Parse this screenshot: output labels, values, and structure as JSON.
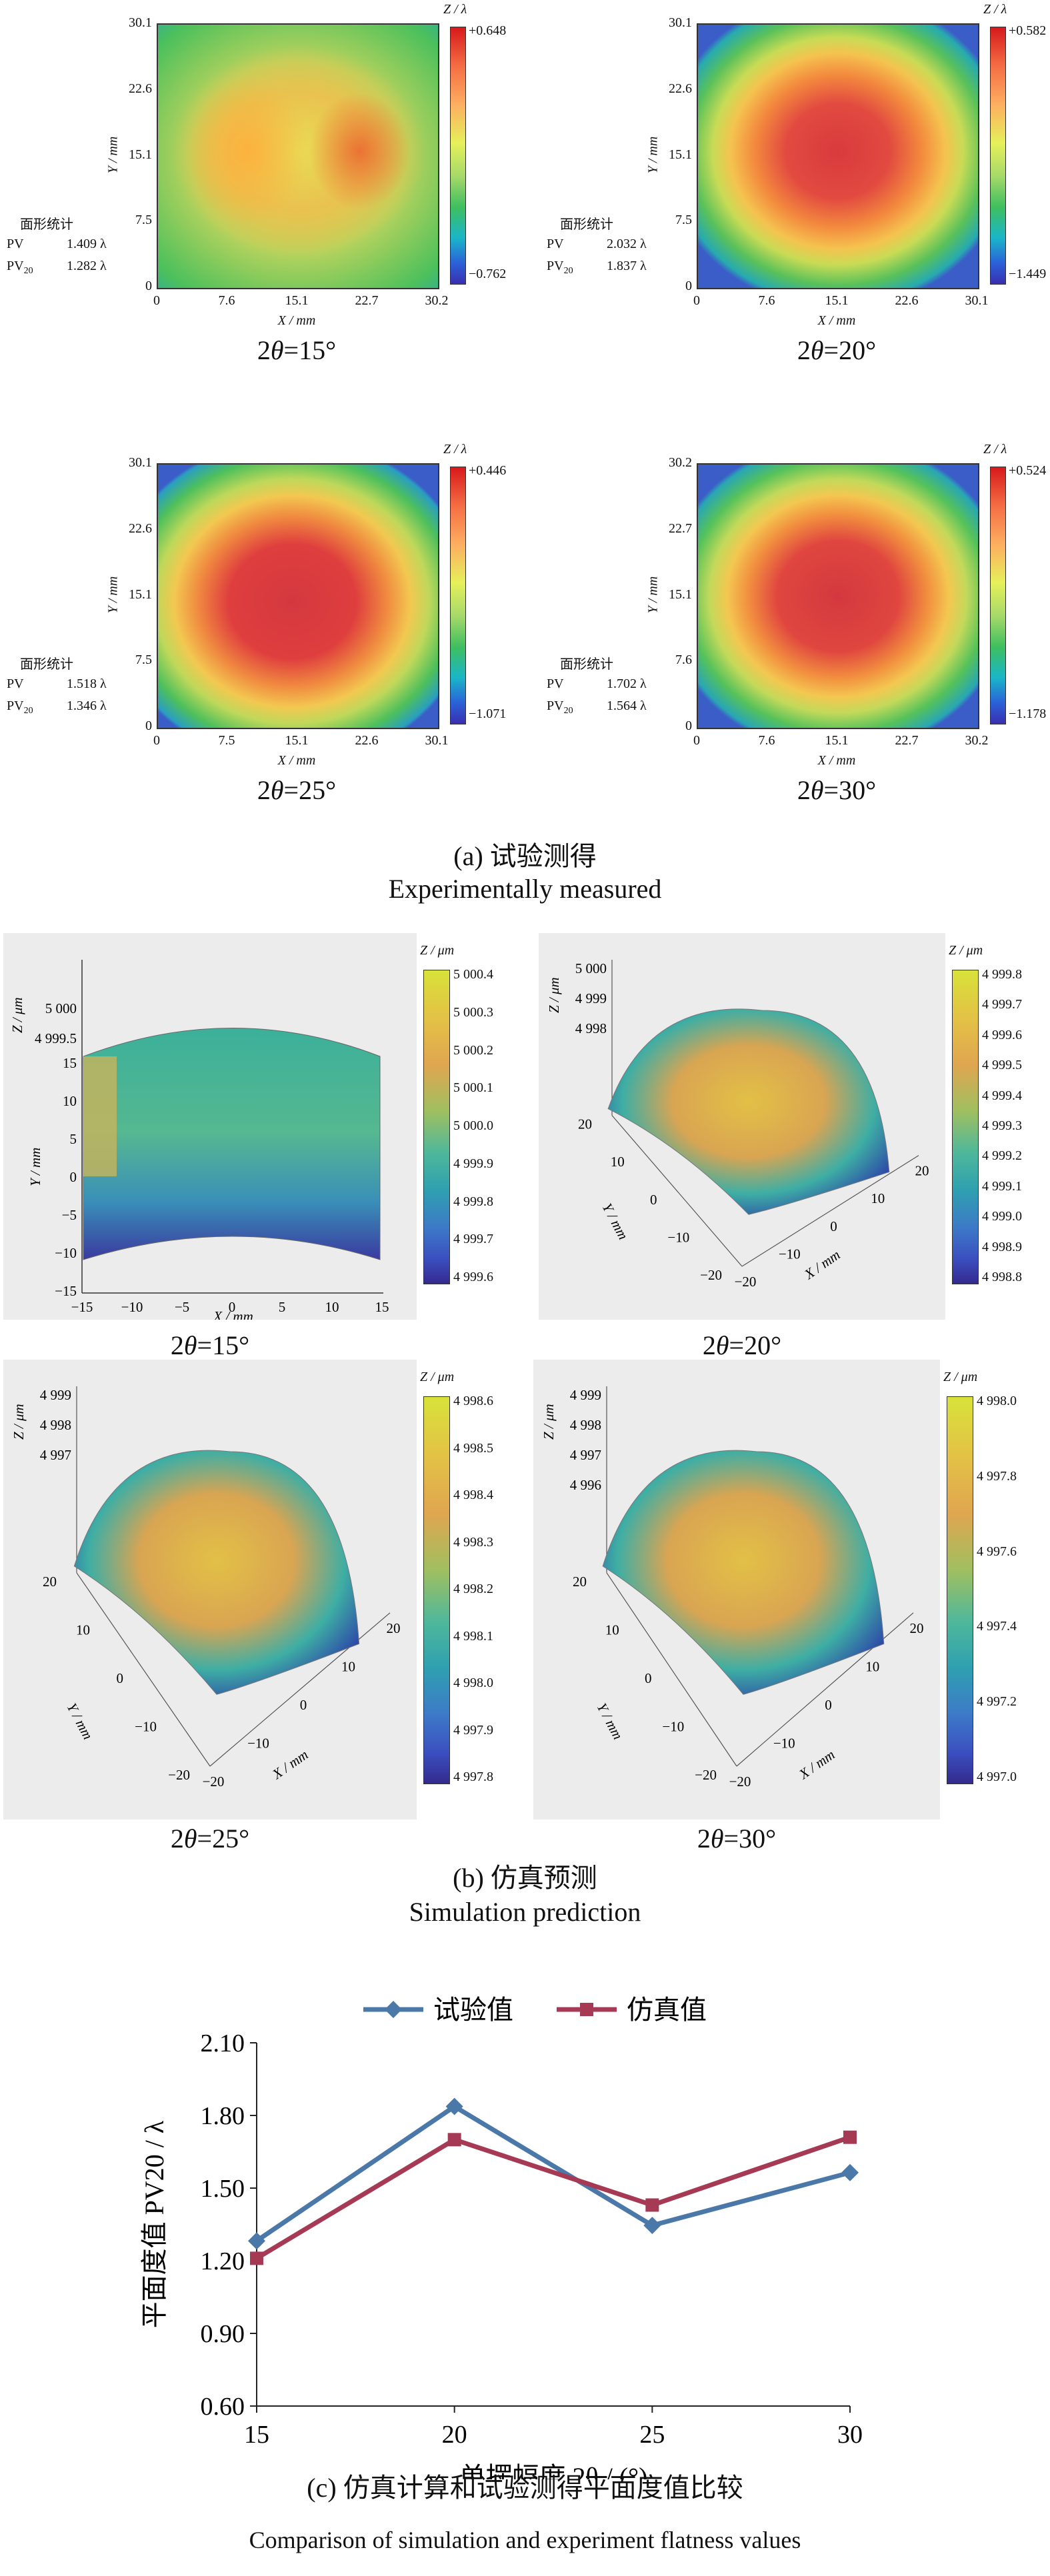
{
  "section_a": {
    "panels": [
      {
        "label": "2θ=15°",
        "y_ticks": [
          "30.1",
          "22.6",
          "15.1",
          "7.5",
          "0"
        ],
        "x_ticks": [
          "0",
          "7.6",
          "15.1",
          "22.7",
          "30.2"
        ],
        "cbar_max": "+0.648",
        "cbar_min": "−0.762",
        "stats_title": "面形统计",
        "pv_label": "PV",
        "pv_value": "1.409 λ",
        "pv20_label": "PV20",
        "pv20_value": "1.282 λ"
      },
      {
        "label": "2θ=20°",
        "y_ticks": [
          "30.1",
          "22.6",
          "15.1",
          "7.5",
          "0"
        ],
        "x_ticks": [
          "0",
          "7.6",
          "15.1",
          "22.6",
          "30.1"
        ],
        "cbar_max": "+0.582",
        "cbar_min": "−1.449",
        "stats_title": "面形统计",
        "pv_label": "PV",
        "pv_value": "2.032 λ",
        "pv20_label": "PV20",
        "pv20_value": "1.837 λ"
      },
      {
        "label": "2θ=25°",
        "y_ticks": [
          "30.1",
          "22.6",
          "15.1",
          "7.5",
          "0"
        ],
        "x_ticks": [
          "0",
          "7.5",
          "15.1",
          "22.6",
          "30.1"
        ],
        "cbar_max": "+0.446",
        "cbar_min": "−1.071",
        "stats_title": "面形统计",
        "pv_label": "PV",
        "pv_value": "1.518 λ",
        "pv20_label": "PV20",
        "pv20_value": "1.346 λ"
      },
      {
        "label": "2θ=30°",
        "y_ticks": [
          "30.2",
          "22.7",
          "15.1",
          "7.6",
          "0"
        ],
        "x_ticks": [
          "0",
          "7.6",
          "15.1",
          "22.7",
          "30.2"
        ],
        "cbar_max": "+0.524",
        "cbar_min": "−1.178",
        "stats_title": "面形统计",
        "pv_label": "PV",
        "pv_value": "1.702 λ",
        "pv20_label": "PV20",
        "pv20_value": "1.564 λ"
      }
    ],
    "ylabel": "Y / mm",
    "xlabel": "X / mm",
    "zlabel": "Z / λ",
    "caption_cn": "(a) 试验测得",
    "caption_en": "Experimentally measured"
  },
  "section_b": {
    "panels": [
      {
        "label": "2θ=15°",
        "cbar_ticks": [
          "5 000.4",
          "5 000.3",
          "5 000.2",
          "5 000.1",
          "5 000.0",
          "4 999.9",
          "4 999.8",
          "4 999.7",
          "4 999.6"
        ],
        "z_ticks": [
          "5 000",
          "4 999.5"
        ],
        "y_ticks": [
          "15",
          "10",
          "5",
          "0",
          "−5",
          "−10",
          "−15"
        ],
        "x_ticks": [
          "−15",
          "−10",
          "−5",
          "0",
          "5",
          "10",
          "15"
        ]
      },
      {
        "label": "2θ=20°",
        "cbar_ticks": [
          "4 999.8",
          "4 999.7",
          "4 999.6",
          "4 999.5",
          "4 999.4",
          "4 999.3",
          "4 999.2",
          "4 999.1",
          "4 999.0",
          "4 998.9",
          "4 998.8"
        ],
        "z_ticks": [
          "5 000",
          "4 999",
          "4 998"
        ],
        "y_ticks": [
          "20",
          "10",
          "0",
          "−10",
          "−20"
        ],
        "x_ticks": [
          "−20",
          "−10",
          "0",
          "10",
          "20"
        ]
      },
      {
        "label": "2θ=25°",
        "cbar_ticks": [
          "4 998.6",
          "4 998.5",
          "4 998.4",
          "4 998.3",
          "4 998.2",
          "4 998.1",
          "4 998.0",
          "4 997.9",
          "4 997.8"
        ],
        "z_ticks": [
          "4 999",
          "4 998",
          "4 997"
        ],
        "y_ticks": [
          "20",
          "10",
          "0",
          "−10",
          "−20"
        ],
        "x_ticks": [
          "−20",
          "−10",
          "0",
          "10",
          "20"
        ]
      },
      {
        "label": "2θ=30°",
        "cbar_ticks": [
          "4 998.0",
          "4 997.8",
          "4 997.6",
          "4 997.4",
          "4 997.2",
          "4 997.0"
        ],
        "z_ticks": [
          "4 999",
          "4 998",
          "4 997",
          "4 996"
        ],
        "y_ticks": [
          "20",
          "10",
          "0",
          "−10",
          "−20"
        ],
        "x_ticks": [
          "−20",
          "−10",
          "0",
          "10",
          "20"
        ]
      }
    ],
    "ylabel": "Y / mm",
    "xlabel": "X / mm",
    "zlabel": "Z / μm",
    "caption_cn": "(b) 仿真预测",
    "caption_en": "Simulation prediction"
  },
  "chart_data": {
    "type": "line",
    "x": [
      15,
      20,
      25,
      30
    ],
    "series": [
      {
        "name": "试验值",
        "values": [
          1.282,
          1.837,
          1.346,
          1.564
        ],
        "color": "#4a78a8"
      },
      {
        "name": "仿真值",
        "values": [
          1.21,
          1.7,
          1.43,
          1.71
        ],
        "color": "#a63a55"
      }
    ],
    "xlabel": "单摆幅度 2θ / (°)",
    "ylabel": "平面度值 PV20 / λ",
    "yticks": [
      "0.60",
      "0.90",
      "1.20",
      "1.50",
      "1.80",
      "2.10"
    ],
    "xticks": [
      "15",
      "20",
      "25",
      "30"
    ],
    "ylim": [
      0.6,
      2.1
    ],
    "xlim": [
      15,
      30
    ],
    "legend": "top-center",
    "grid": false
  },
  "section_c": {
    "caption_cn": "(c) 仿真计算和试验测得平面度值比较",
    "caption_en": "Comparison of simulation and experiment flatness values"
  }
}
